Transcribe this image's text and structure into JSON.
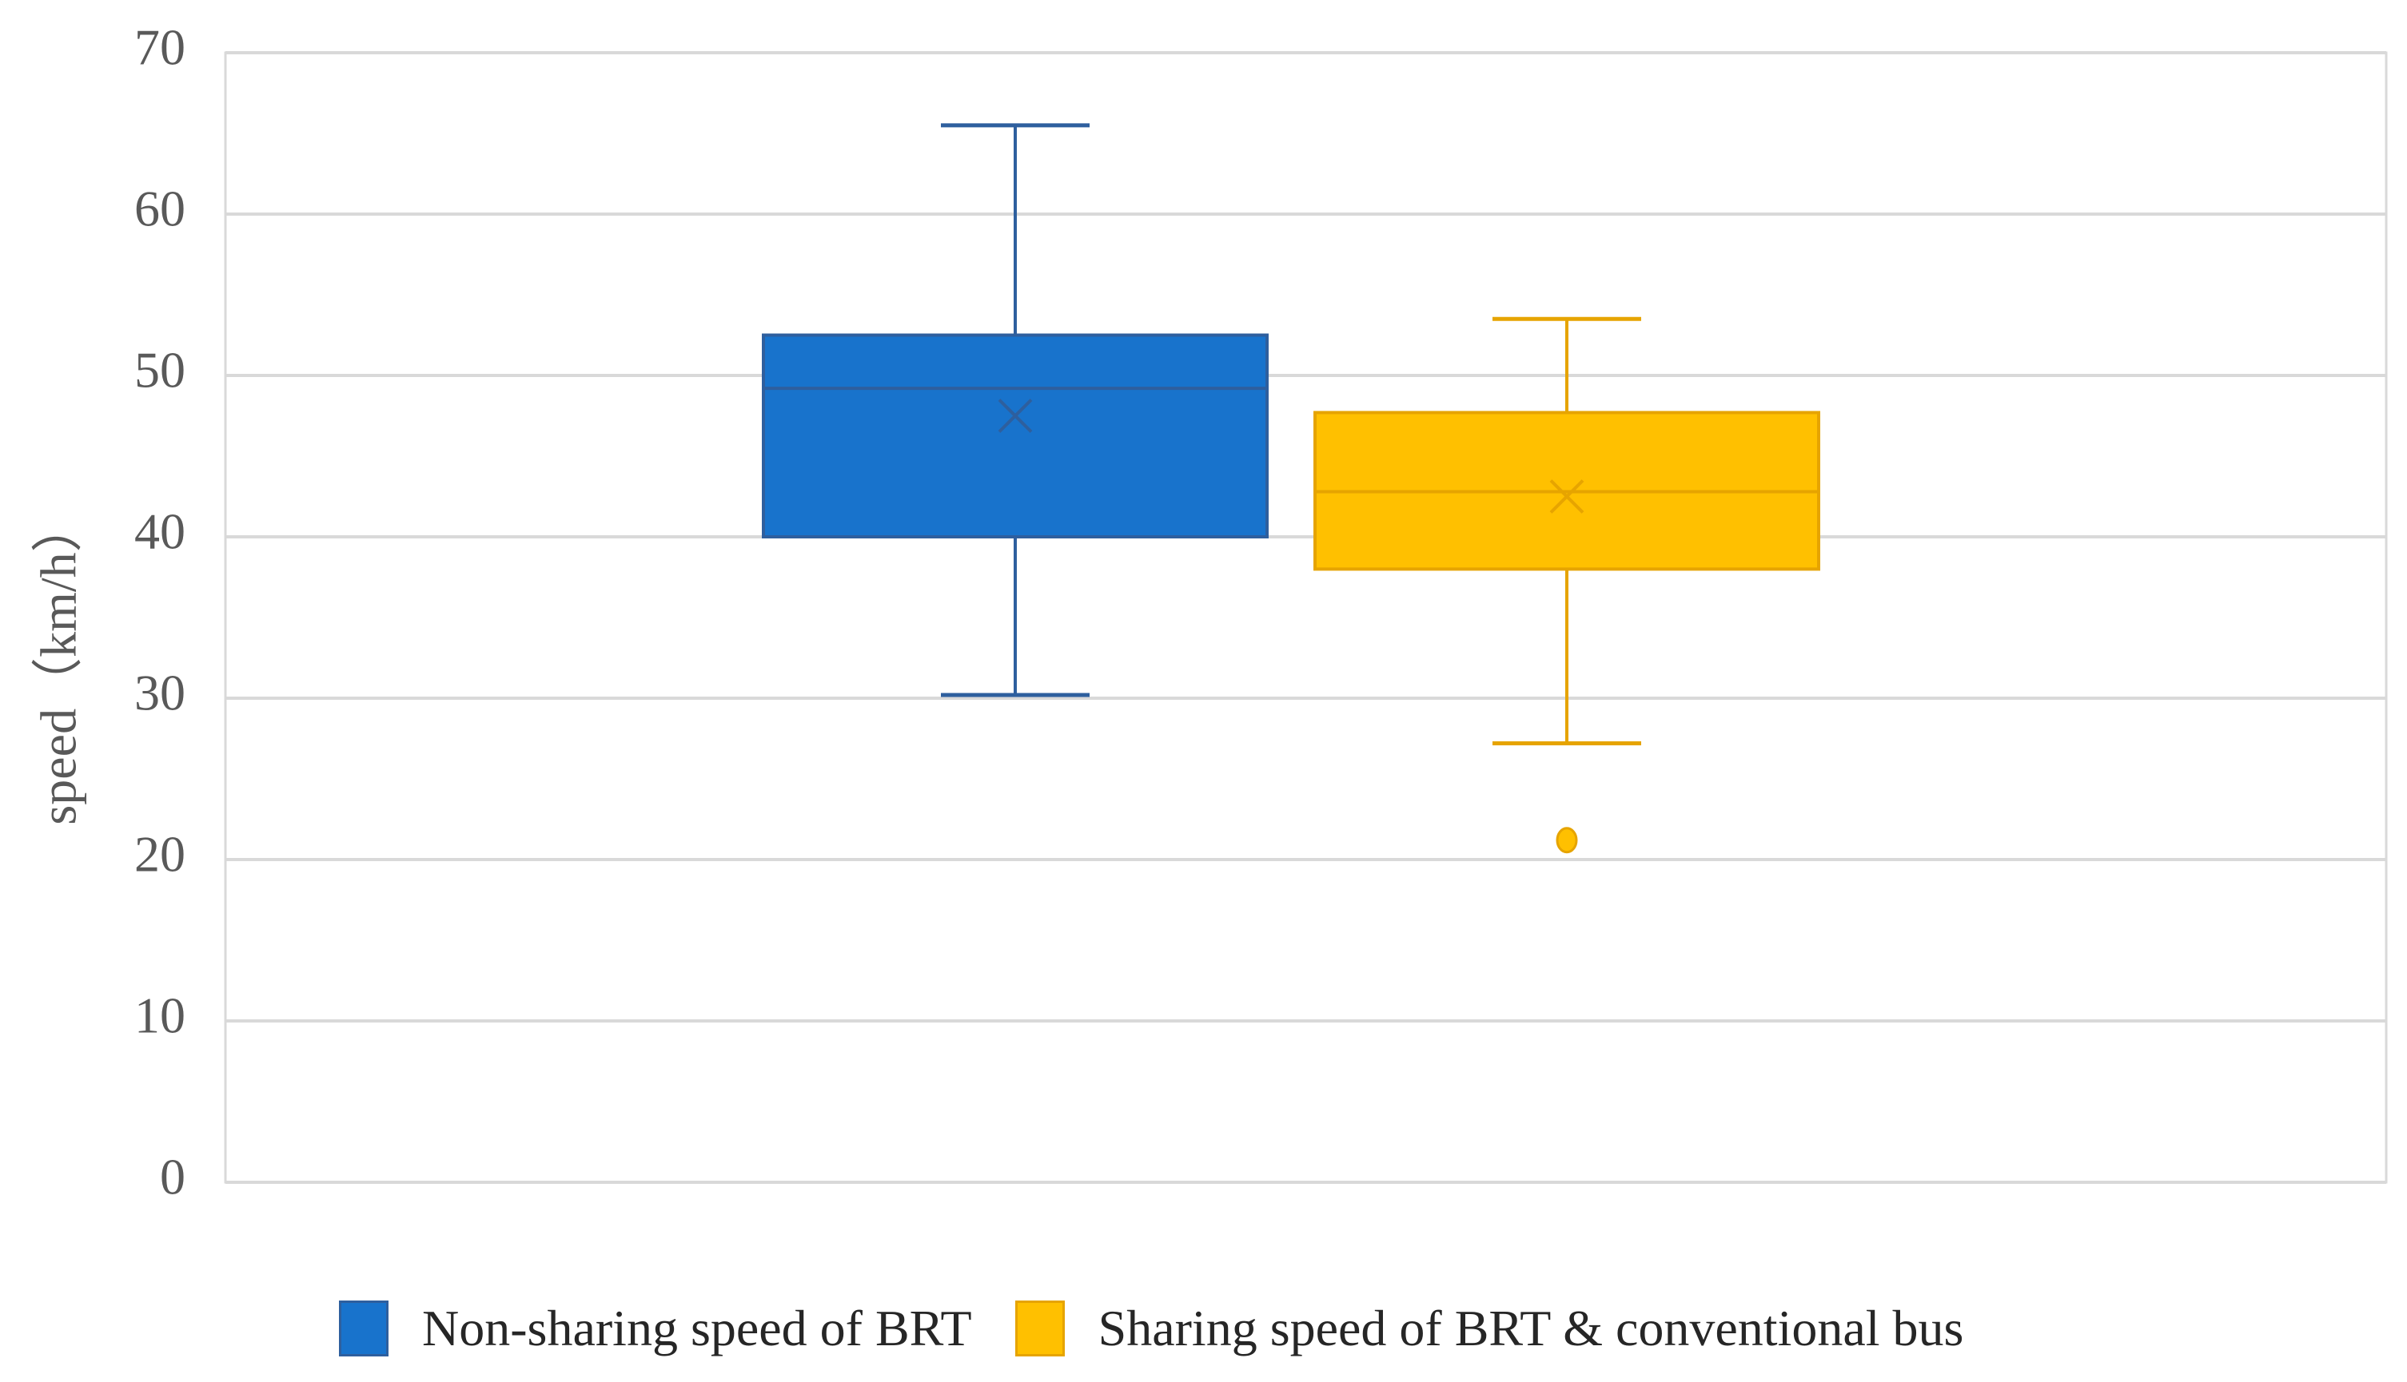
{
  "chart_data": {
    "type": "box",
    "title": "",
    "ylabel": "speed（km/h）",
    "xlabel": "",
    "ylim": [
      0,
      70
    ],
    "yticks": [
      0,
      10,
      20,
      30,
      40,
      50,
      60,
      70
    ],
    "grid": true,
    "legend_position": "bottom",
    "series": [
      {
        "name": "Non-sharing speed of BRT",
        "color": "#1873CC",
        "whisker_low": 30.2,
        "q1": 40.0,
        "median": 49.2,
        "mean": 47.5,
        "q3": 52.5,
        "whisker_high": 65.5,
        "outliers": []
      },
      {
        "name": "Sharing speed of BRT & conventional bus",
        "color": "#FFC000",
        "whisker_low": 27.2,
        "q1": 38.0,
        "median": 42.8,
        "mean": 42.5,
        "q3": 47.7,
        "whisker_high": 53.5,
        "outliers": [
          21.2
        ]
      }
    ]
  }
}
